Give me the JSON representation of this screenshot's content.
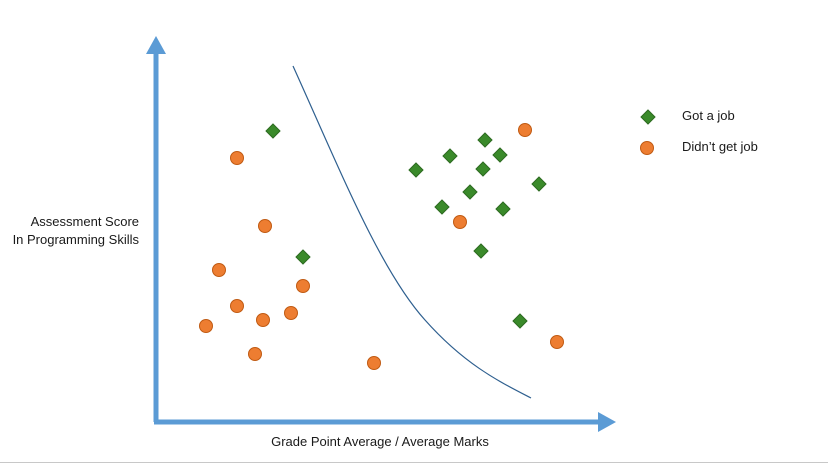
{
  "diagram": {
    "y_label_line1": "Assessment Score",
    "y_label_line2": "In Programming Skills",
    "x_label": "Grade Point Average / Average Marks",
    "legend": {
      "got_job": "Got a job",
      "no_job": "Didn’t get job"
    },
    "colors": {
      "axis": "#5b9bd5",
      "got_job_fill": "#3a8a2a",
      "got_job_stroke": "#2c6a20",
      "no_job_fill": "#ed7d31",
      "no_job_stroke": "#c05a12",
      "boundary": "#2e5f8f"
    },
    "icons": {
      "got_job": "green-diamond-marker",
      "no_job": "orange-circle-marker"
    }
  }
}
